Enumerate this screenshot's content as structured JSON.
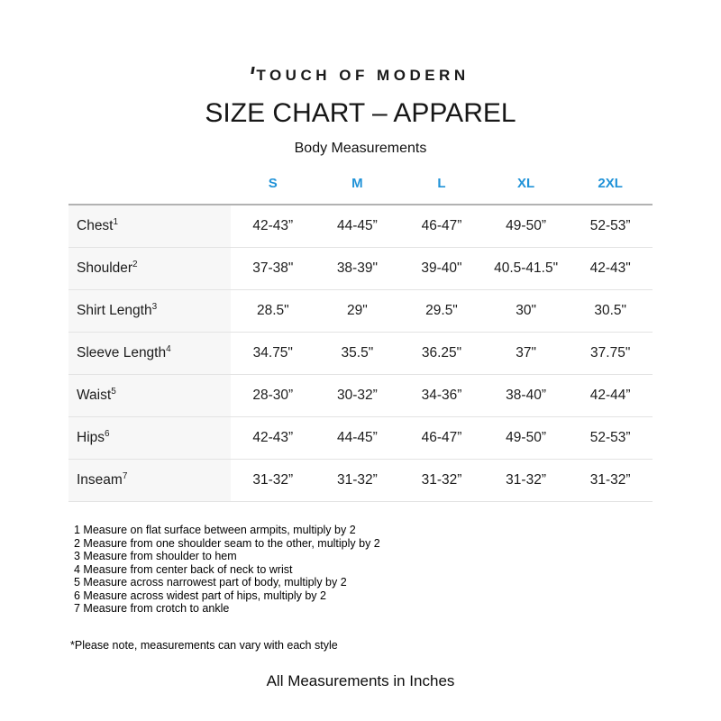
{
  "colors": {
    "accent_blue": "#2193d8",
    "label_bg": "#f7f7f7",
    "row_line": "#e3e3e3",
    "header_line": "#b2b2b2"
  },
  "brand": {
    "logo_text": "TOUCH OF MODERN"
  },
  "header": {
    "title": "SIZE CHART – APPAREL",
    "subtitle": "Body Measurements"
  },
  "table": {
    "size_headers": [
      "S",
      "M",
      "L",
      "XL",
      "2XL"
    ],
    "rows": [
      {
        "label": "Chest",
        "sup": "1",
        "values": [
          "42-43”",
          "44-45”",
          "46-47”",
          "49-50”",
          "52-53”"
        ]
      },
      {
        "label": "Shoulder",
        "sup": "2",
        "values": [
          "37-38\"",
          "38-39\"",
          "39-40\"",
          "40.5-41.5\"",
          "42-43\""
        ]
      },
      {
        "label": "Shirt Length",
        "sup": "3",
        "values": [
          "28.5\"",
          "29\"",
          "29.5\"",
          "30\"",
          "30.5\""
        ]
      },
      {
        "label": "Sleeve Length",
        "sup": "4",
        "values": [
          "34.75\"",
          "35.5\"",
          "36.25\"",
          "37\"",
          "37.75\""
        ]
      },
      {
        "label": "Waist",
        "sup": "5",
        "values": [
          "28-30”",
          "30-32”",
          "34-36”",
          "38-40”",
          "42-44”"
        ]
      },
      {
        "label": "Hips",
        "sup": "6",
        "values": [
          "42-43”",
          "44-45”",
          "46-47”",
          "49-50”",
          "52-53”"
        ]
      },
      {
        "label": "Inseam",
        "sup": "7",
        "values": [
          "31-32”",
          "31-32”",
          "31-32”",
          "31-32”",
          "31-32”"
        ]
      }
    ]
  },
  "footnotes": [
    "1 Measure on flat surface between armpits, multiply by 2",
    "2 Measure from one shoulder seam to the other, multiply by 2",
    "3 Measure from shoulder to hem",
    "4 Measure from center back of neck to wrist",
    "5 Measure across narrowest part of body, multiply by 2",
    "6 Measure across widest part of hips, multiply by 2",
    "7 Measure from crotch to ankle"
  ],
  "notes": {
    "style_note": "*Please note, measurements can vary with each style",
    "units_note": "All Measurements in Inches"
  }
}
